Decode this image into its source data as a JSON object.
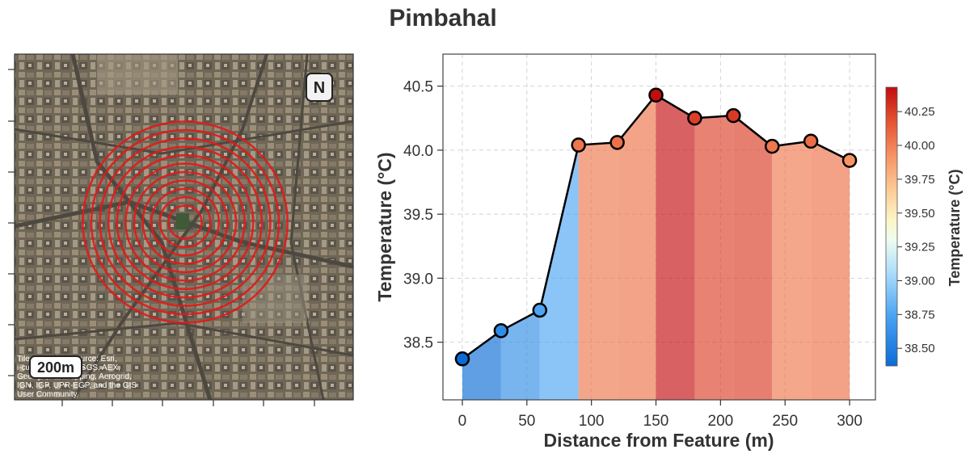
{
  "figure": {
    "title": "Pimbahal"
  },
  "map": {
    "north_label": "N",
    "scale_label": "200m",
    "attribution": [
      "Tiles © Esri — Source: Esri,",
      "i-cubed, USDA, USGS, AEX,",
      "GeoEye, Getmapping, Aerogrid,",
      "IGN, IGP, UPR-EGP, and the GIS",
      "User Community"
    ],
    "ring_color": "#e11a1a"
  },
  "chart_data": {
    "type": "line",
    "title": "Pimbahal",
    "xlabel": "Distance from Feature (m)",
    "ylabel": "Temperature (°C)",
    "x": [
      0,
      30,
      60,
      90,
      120,
      150,
      180,
      210,
      240,
      270,
      300
    ],
    "y": [
      38.37,
      38.59,
      38.75,
      40.04,
      40.06,
      40.43,
      40.25,
      40.27,
      40.03,
      40.07,
      39.92
    ],
    "xlim": [
      -15,
      320
    ],
    "ylim": [
      38.05,
      40.75
    ],
    "xticks": [
      "0",
      "50",
      "100",
      "150",
      "200",
      "250",
      "300"
    ],
    "yticks": [
      "38.5",
      "39.0",
      "39.5",
      "40.0",
      "40.5"
    ],
    "grid": true,
    "colorbar": {
      "label": "Temperature (°C)",
      "min": 38.37,
      "max": 40.43,
      "ticks": [
        "38.50",
        "38.75",
        "39.00",
        "39.25",
        "39.50",
        "39.75",
        "40.00",
        "40.25"
      ]
    }
  }
}
